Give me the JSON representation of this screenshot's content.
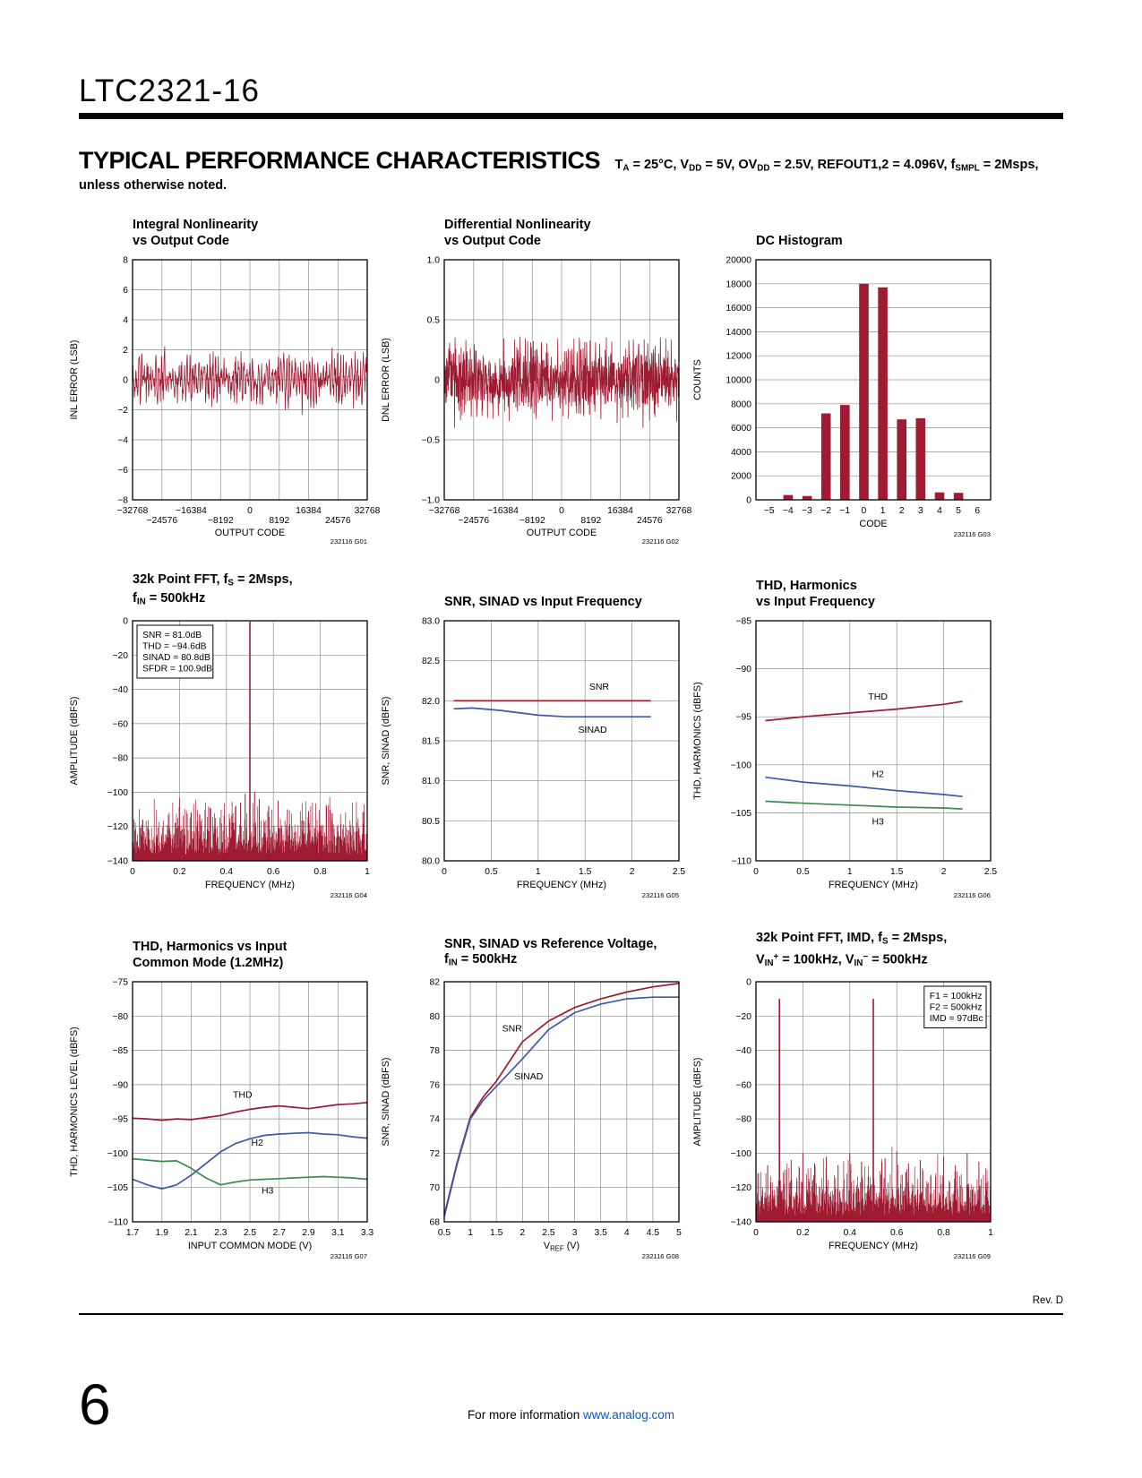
{
  "page": {
    "part_number": "LTC2321-16",
    "section_title": "TYPICAL PERFORMANCE CHARACTERISTICS",
    "conditions": "T~A~ = 25°C, V~DD~ = 5V, OV~DD~ = 2.5V, REFOUT1,2 = 4.096V, f~SMPL~ = 2Msps, unless otherwise noted.",
    "rev": "Rev. D",
    "page_number": "6",
    "footer_text": "For more information ",
    "footer_link": "www.analog.com"
  },
  "colors": {
    "red": "#9e1b32",
    "blue": "#3d59a8",
    "green": "#3c8a4f",
    "grid": "#8f8f8f",
    "axis": "#000000",
    "link": "#1155cc"
  },
  "chart_data": [
    {
      "code": "232116 G01",
      "title": "Integral Nonlinearity\nvs Output Code",
      "type": "noise-line",
      "xlabel": "OUTPUT CODE",
      "ylabel": "INL ERROR (LSB)",
      "xlim": [
        -32768,
        32768
      ],
      "ylim": [
        -8,
        8
      ],
      "xticks": [
        -32768,
        -24576,
        -16384,
        -8192,
        0,
        8192,
        16384,
        24576,
        32768
      ],
      "xtickStagger": true,
      "yticks": [
        -8,
        -6,
        -4,
        -2,
        0,
        2,
        4,
        6,
        8
      ],
      "noise": {
        "seed": 3,
        "n": 650,
        "amp": 1.25,
        "wave": 1.0,
        "waves": 30,
        "clip": [
          -3.1,
          3.1
        ]
      }
    },
    {
      "code": "232116 G02",
      "title": "Differential Nonlinearity\nvs Output Code",
      "type": "noise-line",
      "xlabel": "OUTPUT CODE",
      "ylabel": "DNL ERROR (LSB)",
      "xlim": [
        -32768,
        32768
      ],
      "ylim": [
        -1,
        1
      ],
      "xticks": [
        -32768,
        -24576,
        -16384,
        -8192,
        0,
        8192,
        16384,
        24576,
        32768
      ],
      "xtickStagger": true,
      "yticks": [
        -1,
        -0.5,
        0,
        0.5,
        1
      ],
      "ytickLabels": [
        "−1.0",
        "−0.5",
        "0",
        "0.5",
        "1.0"
      ],
      "noise": {
        "seed": 9,
        "n": 1000,
        "amp": 0.26,
        "wave": 0.07,
        "waves": 12,
        "clip": [
          -0.4,
          0.42
        ],
        "comb": 23,
        "spikeBase": 0.3
      }
    },
    {
      "code": "232116 G03",
      "title": "DC Histogram",
      "type": "bar",
      "xlabel": "CODE",
      "ylabel": "COUNTS",
      "xlim": [
        -5.7,
        6.7
      ],
      "ylim": [
        0,
        20000
      ],
      "xticks": [
        -5,
        -4,
        -3,
        -2,
        -1,
        0,
        1,
        2,
        3,
        4,
        5,
        6
      ],
      "gridX": false,
      "yticks": [
        0,
        2000,
        4000,
        6000,
        8000,
        10000,
        12000,
        14000,
        16000,
        18000,
        20000
      ],
      "categories": [
        -5,
        -4,
        -3,
        -2,
        -1,
        0,
        1,
        2,
        3,
        4,
        5,
        6
      ],
      "values": [
        0,
        400,
        320,
        7200,
        7900,
        18000,
        17700,
        6700,
        6800,
        620,
        580,
        0
      ],
      "barWidth": 0.5
    },
    {
      "code": "232116 G04",
      "title": "32k Point FFT, f~S~ = 2Msps,\nf~IN~ = 500kHz",
      "type": "fft",
      "xlabel": "FREQUENCY (MHz)",
      "ylabel": "AMPLITUDE (dBFS)",
      "xlim": [
        0,
        1
      ],
      "ylim": [
        -140,
        0
      ],
      "xticks": [
        0,
        0.2,
        0.4,
        0.6,
        0.8,
        1
      ],
      "yticks": [
        -140,
        -120,
        -100,
        -80,
        -60,
        -40,
        -20,
        0
      ],
      "fft": {
        "seed": 17,
        "n": 520,
        "floor": -136,
        "jitter": 34,
        "spikes": [
          {
            "x": 0.5,
            "y": -0.5
          }
        ],
        "minor": [
          {
            "x": 0.46,
            "y": -106
          },
          {
            "x": 0.48,
            "y": -101
          },
          {
            "x": 0.52,
            "y": -100
          },
          {
            "x": 0.54,
            "y": -104
          },
          {
            "x": 0.58,
            "y": -108
          },
          {
            "x": 0.62,
            "y": -105
          },
          {
            "x": 0.66,
            "y": -110
          },
          {
            "x": 0.25,
            "y": -112
          },
          {
            "x": 0.33,
            "y": -109
          },
          {
            "x": 0.75,
            "y": -111
          }
        ]
      },
      "annotation": {
        "pos": "tl",
        "lines": [
          "SNR = 81.0dB",
          "THD = −94.6dB",
          "SINAD = 80.8dB",
          "SFDR = 100.9dB"
        ]
      }
    },
    {
      "code": "232116 G05",
      "title": "SNR, SINAD vs Input Frequency",
      "type": "line",
      "xlabel": "FREQUENCY (MHz)",
      "ylabel": "SNR, SINAD (dBFS)",
      "xlim": [
        0,
        2.5
      ],
      "ylim": [
        80,
        83
      ],
      "xticks": [
        0,
        0.5,
        1,
        1.5,
        2,
        2.5
      ],
      "yticks": [
        80,
        80.5,
        81,
        81.5,
        82,
        82.5,
        83
      ],
      "ytickLabels": [
        "80.0",
        "80.5",
        "81.0",
        "81.5",
        "82.0",
        "82.5",
        "83.0"
      ],
      "series": [
        {
          "name": "SNR",
          "color": "red",
          "x": [
            0.1,
            0.5,
            1,
            1.5,
            2,
            2.2
          ],
          "y": [
            82.0,
            82.0,
            82.0,
            82.0,
            82.0,
            82.0
          ],
          "label": {
            "x": 1.65,
            "y": 82.14
          }
        },
        {
          "name": "SINAD",
          "color": "blue",
          "x": [
            0.1,
            0.3,
            0.6,
            1,
            1.3,
            1.7,
            2,
            2.2
          ],
          "y": [
            81.9,
            81.91,
            81.88,
            81.82,
            81.8,
            81.8,
            81.8,
            81.8
          ],
          "label": {
            "x": 1.58,
            "y": 81.6
          }
        }
      ]
    },
    {
      "code": "232116 G06",
      "title": "THD, Harmonics\nvs Input Frequency",
      "type": "line",
      "xlabel": "FREQUENCY (MHz)",
      "ylabel": "THD, HARMONICS (dBFS)",
      "xlim": [
        0,
        2.5
      ],
      "ylim": [
        -110,
        -85
      ],
      "xticks": [
        0,
        0.5,
        1,
        1.5,
        2,
        2.5
      ],
      "yticks": [
        -110,
        -105,
        -100,
        -95,
        -90,
        -85
      ],
      "series": [
        {
          "name": "THD",
          "color": "red",
          "x": [
            0.1,
            0.5,
            1,
            1.5,
            2,
            2.2
          ],
          "y": [
            -95.4,
            -95.0,
            -94.6,
            -94.2,
            -93.7,
            -93.4
          ],
          "label": {
            "x": 1.3,
            "y": -93.2
          }
        },
        {
          "name": "H2",
          "color": "blue",
          "x": [
            0.1,
            0.5,
            1,
            1.5,
            2,
            2.2
          ],
          "y": [
            -101.3,
            -101.8,
            -102.2,
            -102.7,
            -103.1,
            -103.3
          ],
          "label": {
            "x": 1.3,
            "y": -101.3
          }
        },
        {
          "name": "H3",
          "color": "green",
          "x": [
            0.1,
            0.5,
            1,
            1.5,
            2,
            2.2
          ],
          "y": [
            -103.8,
            -104.0,
            -104.2,
            -104.4,
            -104.5,
            -104.6
          ],
          "label": {
            "x": 1.3,
            "y": -106.2
          }
        }
      ]
    },
    {
      "code": "232116 G07",
      "title": "THD, Harmonics vs Input\nCommon Mode (1.2MHz)",
      "type": "line",
      "xlabel": "INPUT COMMON MODE (V)",
      "ylabel": "THD, HARMONICS LEVEL (dBFS)",
      "xlim": [
        1.7,
        3.3
      ],
      "ylim": [
        -110,
        -75
      ],
      "xticks": [
        1.7,
        1.9,
        2.1,
        2.3,
        2.5,
        2.7,
        2.9,
        3.1,
        3.3
      ],
      "yticks": [
        -110,
        -105,
        -100,
        -95,
        -90,
        -85,
        -80,
        -75
      ],
      "series": [
        {
          "name": "THD",
          "color": "red",
          "x": [
            1.7,
            1.8,
            1.9,
            2.0,
            2.1,
            2.2,
            2.3,
            2.4,
            2.5,
            2.6,
            2.7,
            2.8,
            2.9,
            3.0,
            3.1,
            3.2,
            3.3
          ],
          "y": [
            -94.9,
            -95.0,
            -95.2,
            -95.0,
            -95.1,
            -94.8,
            -94.5,
            -94.0,
            -93.6,
            -93.3,
            -93.1,
            -93.3,
            -93.5,
            -93.2,
            -92.9,
            -92.8,
            -92.6
          ],
          "label": {
            "x": 2.45,
            "y": -91.9
          }
        },
        {
          "name": "H2",
          "color": "blue",
          "x": [
            1.7,
            1.8,
            1.9,
            2.0,
            2.1,
            2.2,
            2.3,
            2.4,
            2.5,
            2.6,
            2.7,
            2.8,
            2.9,
            3.0,
            3.1,
            3.2,
            3.3
          ],
          "y": [
            -103.8,
            -104.6,
            -105.2,
            -104.6,
            -103.2,
            -101.5,
            -99.8,
            -98.6,
            -97.9,
            -97.4,
            -97.2,
            -97.1,
            -97.0,
            -97.2,
            -97.3,
            -97.6,
            -97.8
          ],
          "label": {
            "x": 2.55,
            "y": -98.9
          }
        },
        {
          "name": "H3",
          "color": "green",
          "x": [
            1.7,
            1.8,
            1.9,
            2.0,
            2.1,
            2.2,
            2.3,
            2.4,
            2.5,
            2.6,
            2.7,
            2.8,
            2.9,
            3.0,
            3.1,
            3.2,
            3.3
          ],
          "y": [
            -100.8,
            -101.0,
            -101.2,
            -101.1,
            -102.2,
            -103.6,
            -104.6,
            -104.2,
            -103.9,
            -103.8,
            -103.7,
            -103.6,
            -103.5,
            -103.4,
            -103.5,
            -103.6,
            -103.8
          ],
          "label": {
            "x": 2.62,
            "y": -105.9
          }
        }
      ]
    },
    {
      "code": "232116 G08",
      "title": "SNR, SINAD vs Reference Voltage,\nf~IN~ = 500kHz",
      "type": "line",
      "xlabel": "V~REF~ (V)",
      "ylabel": "SNR, SINAD (dBFS)",
      "xlim": [
        0.5,
        5
      ],
      "ylim": [
        68,
        82
      ],
      "xticks": [
        0.5,
        1,
        1.5,
        2,
        2.5,
        3,
        3.5,
        4,
        4.5,
        5
      ],
      "yticks": [
        68,
        70,
        72,
        74,
        76,
        78,
        80,
        82
      ],
      "series": [
        {
          "name": "SNR",
          "color": "red",
          "x": [
            0.5,
            0.75,
            1,
            1.25,
            1.5,
            2,
            2.5,
            3,
            3.5,
            4,
            4.5,
            5
          ],
          "y": [
            68.4,
            71.5,
            74.1,
            75.3,
            76.2,
            78.5,
            79.7,
            80.5,
            81.0,
            81.4,
            81.7,
            81.9
          ],
          "label": {
            "x": 1.8,
            "y": 79.1
          }
        },
        {
          "name": "SINAD",
          "color": "blue",
          "x": [
            0.5,
            0.75,
            1,
            1.25,
            1.5,
            2,
            2.5,
            3,
            3.5,
            4,
            4.5,
            5
          ],
          "y": [
            68.3,
            71.4,
            74.0,
            75.1,
            75.9,
            77.5,
            79.2,
            80.2,
            80.7,
            81.0,
            81.1,
            81.1
          ],
          "label": {
            "x": 2.12,
            "y": 76.3
          }
        }
      ]
    },
    {
      "code": "232116 G09",
      "title": "32k Point FFT, IMD, f~S~ = 2Msps,\nV~IN~^+^ = 100kHz, V~IN~^−^ = 500kHz",
      "type": "fft",
      "xlabel": "FREQUENCY (MHz)",
      "ylabel": "AMPLITUDE (dBFS)",
      "xlim": [
        0,
        1
      ],
      "ylim": [
        -140,
        0
      ],
      "xticks": [
        0,
        0.2,
        0.4,
        0.6,
        0.8,
        1
      ],
      "yticks": [
        -140,
        -120,
        -100,
        -80,
        -60,
        -40,
        -20,
        0
      ],
      "fft": {
        "seed": 29,
        "n": 520,
        "floor": -136,
        "jitter": 34,
        "spikes": [
          {
            "x": 0.1,
            "y": -10
          },
          {
            "x": 0.5,
            "y": -10
          }
        ],
        "minor": [
          {
            "x": 0.05,
            "y": -107
          },
          {
            "x": 0.15,
            "y": -104
          },
          {
            "x": 0.2,
            "y": -100
          },
          {
            "x": 0.25,
            "y": -106
          },
          {
            "x": 0.3,
            "y": -102
          },
          {
            "x": 0.35,
            "y": -107
          },
          {
            "x": 0.4,
            "y": -100
          },
          {
            "x": 0.45,
            "y": -105
          },
          {
            "x": 0.55,
            "y": -103
          },
          {
            "x": 0.6,
            "y": -99
          },
          {
            "x": 0.65,
            "y": -106
          },
          {
            "x": 0.7,
            "y": -104
          },
          {
            "x": 0.8,
            "y": -102
          },
          {
            "x": 0.85,
            "y": -107
          },
          {
            "x": 0.9,
            "y": -100
          },
          {
            "x": 0.95,
            "y": -105
          }
        ]
      },
      "annotation": {
        "pos": "tr",
        "lines": [
          "F1 = 100kHz",
          "F2 = 500kHz",
          "IMD = 97dBc"
        ]
      }
    }
  ]
}
